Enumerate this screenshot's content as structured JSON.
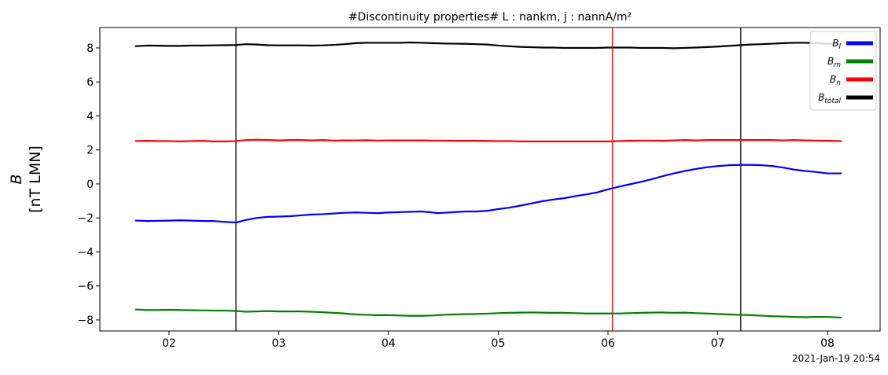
{
  "chart_data": {
    "type": "line",
    "title": "#Discontinuity properties# L : nankm, j : nannA/m²",
    "ylabel_line1": "B",
    "ylabel_line2": "[nT LMN]",
    "footer": "2021-Jan-19 20:54",
    "x_tick_values": [
      2,
      3,
      4,
      5,
      6,
      7,
      8
    ],
    "x_tick_labels": [
      "02",
      "03",
      "04",
      "05",
      "06",
      "07",
      "08"
    ],
    "y_tick_values": [
      -8,
      -6,
      -4,
      -2,
      0,
      2,
      4,
      6,
      8
    ],
    "y_tick_labels": [
      "−8",
      "−6",
      "−4",
      "−2",
      "0",
      "2",
      "4",
      "6",
      "8"
    ],
    "xlim": [
      1.37,
      8.48
    ],
    "ylim": [
      -8.65,
      9.2
    ],
    "legend_position": "top-right",
    "vertical_lines": [
      {
        "x": 2.61,
        "color": "#000000"
      },
      {
        "x": 6.04,
        "color": "#ff0000"
      },
      {
        "x": 7.21,
        "color": "#000000"
      }
    ],
    "series": [
      {
        "name": "B_l",
        "legend_main": "B",
        "legend_sub": "l",
        "color": "#0000ff",
        "x": [
          1.69,
          1.8,
          1.9,
          2.0,
          2.1,
          2.2,
          2.3,
          2.4,
          2.5,
          2.61,
          2.7,
          2.8,
          2.9,
          3.0,
          3.1,
          3.2,
          3.3,
          3.4,
          3.5,
          3.6,
          3.7,
          3.8,
          3.9,
          4.0,
          4.1,
          4.2,
          4.3,
          4.4,
          4.45,
          4.5,
          4.6,
          4.7,
          4.8,
          4.9,
          5.0,
          5.1,
          5.2,
          5.3,
          5.4,
          5.5,
          5.6,
          5.7,
          5.8,
          5.9,
          6.0,
          6.04,
          6.1,
          6.2,
          6.3,
          6.4,
          6.5,
          6.6,
          6.7,
          6.8,
          6.9,
          7.0,
          7.1,
          7.2,
          7.3,
          7.4,
          7.5,
          7.6,
          7.7,
          7.8,
          7.9,
          8.0,
          8.13
        ],
        "values": [
          -2.15,
          -2.18,
          -2.17,
          -2.16,
          -2.14,
          -2.16,
          -2.18,
          -2.18,
          -2.23,
          -2.27,
          -2.12,
          -2.0,
          -1.94,
          -1.92,
          -1.9,
          -1.85,
          -1.8,
          -1.78,
          -1.74,
          -1.7,
          -1.68,
          -1.7,
          -1.72,
          -1.68,
          -1.66,
          -1.64,
          -1.62,
          -1.68,
          -1.72,
          -1.7,
          -1.66,
          -1.62,
          -1.62,
          -1.58,
          -1.48,
          -1.4,
          -1.28,
          -1.15,
          -1.02,
          -0.92,
          -0.84,
          -0.72,
          -0.62,
          -0.5,
          -0.32,
          -0.26,
          -0.16,
          -0.02,
          0.12,
          0.28,
          0.46,
          0.62,
          0.76,
          0.88,
          0.98,
          1.05,
          1.1,
          1.12,
          1.12,
          1.1,
          1.05,
          0.96,
          0.84,
          0.76,
          0.7,
          0.62,
          0.62
        ]
      },
      {
        "name": "B_m",
        "legend_main": "B",
        "legend_sub": "m",
        "color": "#008000",
        "x": [
          1.69,
          1.8,
          1.9,
          2.0,
          2.1,
          2.2,
          2.3,
          2.4,
          2.5,
          2.61,
          2.7,
          2.8,
          2.9,
          3.0,
          3.1,
          3.2,
          3.3,
          3.4,
          3.5,
          3.6,
          3.7,
          3.8,
          3.9,
          4.0,
          4.1,
          4.2,
          4.3,
          4.4,
          4.5,
          4.6,
          4.7,
          4.8,
          4.9,
          5.0,
          5.1,
          5.2,
          5.3,
          5.4,
          5.5,
          5.6,
          5.7,
          5.8,
          5.9,
          6.0,
          6.1,
          6.2,
          6.3,
          6.4,
          6.5,
          6.6,
          6.7,
          6.8,
          6.9,
          7.0,
          7.1,
          7.2,
          7.3,
          7.4,
          7.5,
          7.6,
          7.7,
          7.8,
          7.9,
          8.0,
          8.13
        ],
        "values": [
          -7.38,
          -7.42,
          -7.42,
          -7.4,
          -7.42,
          -7.43,
          -7.44,
          -7.45,
          -7.45,
          -7.47,
          -7.52,
          -7.5,
          -7.48,
          -7.5,
          -7.5,
          -7.5,
          -7.52,
          -7.55,
          -7.58,
          -7.62,
          -7.68,
          -7.7,
          -7.72,
          -7.72,
          -7.74,
          -7.76,
          -7.76,
          -7.74,
          -7.7,
          -7.68,
          -7.66,
          -7.65,
          -7.63,
          -7.6,
          -7.58,
          -7.57,
          -7.56,
          -7.57,
          -7.58,
          -7.58,
          -7.6,
          -7.62,
          -7.62,
          -7.62,
          -7.62,
          -7.6,
          -7.58,
          -7.57,
          -7.56,
          -7.58,
          -7.57,
          -7.6,
          -7.62,
          -7.65,
          -7.68,
          -7.7,
          -7.72,
          -7.75,
          -7.78,
          -7.8,
          -7.82,
          -7.84,
          -7.82,
          -7.82,
          -7.86
        ]
      },
      {
        "name": "B_n",
        "legend_main": "B",
        "legend_sub": "n",
        "color": "#ff0000",
        "x": [
          1.69,
          1.8,
          1.9,
          2.0,
          2.1,
          2.2,
          2.3,
          2.4,
          2.5,
          2.61,
          2.7,
          2.8,
          2.9,
          3.0,
          3.1,
          3.2,
          3.3,
          3.4,
          3.5,
          3.6,
          3.7,
          3.8,
          3.9,
          4.0,
          4.1,
          4.2,
          4.3,
          4.4,
          4.5,
          4.6,
          4.7,
          4.8,
          4.9,
          5.0,
          5.1,
          5.2,
          5.3,
          5.4,
          5.5,
          5.6,
          5.7,
          5.8,
          5.9,
          6.0,
          6.1,
          6.2,
          6.3,
          6.4,
          6.5,
          6.6,
          6.7,
          6.8,
          6.9,
          7.0,
          7.1,
          7.2,
          7.3,
          7.4,
          7.5,
          7.6,
          7.7,
          7.8,
          7.9,
          8.0,
          8.13
        ],
        "values": [
          2.52,
          2.54,
          2.52,
          2.52,
          2.5,
          2.52,
          2.54,
          2.5,
          2.5,
          2.52,
          2.58,
          2.6,
          2.58,
          2.56,
          2.58,
          2.58,
          2.56,
          2.58,
          2.55,
          2.56,
          2.56,
          2.57,
          2.55,
          2.56,
          2.56,
          2.56,
          2.56,
          2.55,
          2.55,
          2.54,
          2.54,
          2.54,
          2.53,
          2.52,
          2.52,
          2.5,
          2.5,
          2.5,
          2.5,
          2.5,
          2.5,
          2.5,
          2.5,
          2.5,
          2.52,
          2.54,
          2.55,
          2.55,
          2.54,
          2.56,
          2.58,
          2.56,
          2.58,
          2.58,
          2.58,
          2.58,
          2.58,
          2.58,
          2.58,
          2.56,
          2.58,
          2.56,
          2.55,
          2.54,
          2.52
        ]
      },
      {
        "name": "B_total",
        "legend_main": "B",
        "legend_sub": "total",
        "color": "#000000",
        "x": [
          1.69,
          1.8,
          1.9,
          2.0,
          2.1,
          2.2,
          2.3,
          2.4,
          2.5,
          2.61,
          2.7,
          2.8,
          2.9,
          3.0,
          3.1,
          3.2,
          3.3,
          3.4,
          3.5,
          3.6,
          3.7,
          3.8,
          3.9,
          4.0,
          4.1,
          4.2,
          4.3,
          4.4,
          4.5,
          4.6,
          4.7,
          4.8,
          4.9,
          5.0,
          5.1,
          5.2,
          5.3,
          5.4,
          5.5,
          5.6,
          5.7,
          5.8,
          5.9,
          6.0,
          6.1,
          6.2,
          6.3,
          6.4,
          6.5,
          6.6,
          6.7,
          6.8,
          6.9,
          7.0,
          7.1,
          7.2,
          7.3,
          7.4,
          7.5,
          7.6,
          7.7,
          7.8,
          7.9,
          8.0,
          8.13
        ],
        "values": [
          8.1,
          8.14,
          8.13,
          8.12,
          8.12,
          8.14,
          8.14,
          8.15,
          8.16,
          8.17,
          8.22,
          8.2,
          8.16,
          8.15,
          8.15,
          8.15,
          8.14,
          8.15,
          8.18,
          8.22,
          8.28,
          8.3,
          8.3,
          8.3,
          8.3,
          8.32,
          8.3,
          8.28,
          8.26,
          8.25,
          8.24,
          8.22,
          8.2,
          8.14,
          8.1,
          8.06,
          8.04,
          8.02,
          8.02,
          8.0,
          8.0,
          8.0,
          8.0,
          8.02,
          8.02,
          8.02,
          8.0,
          8.0,
          8.0,
          7.98,
          8.0,
          8.02,
          8.05,
          8.08,
          8.12,
          8.16,
          8.2,
          8.22,
          8.25,
          8.28,
          8.3,
          8.3,
          8.28,
          8.24,
          8.24
        ]
      }
    ]
  }
}
